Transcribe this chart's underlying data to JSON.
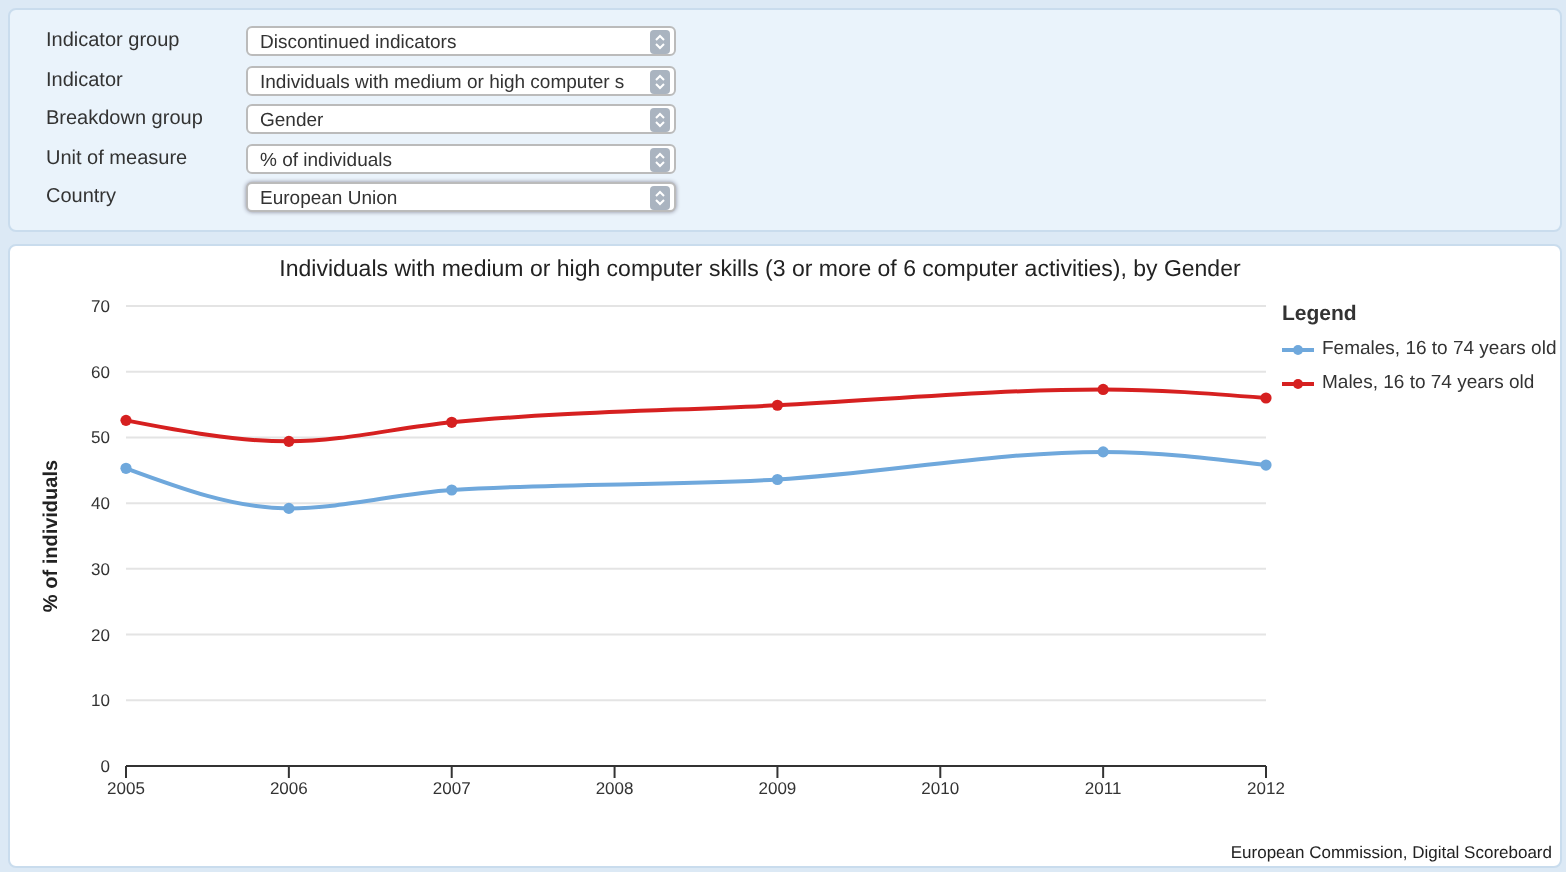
{
  "chart_data": {
    "type": "line",
    "title": "Individuals with medium or high computer skills (3 or more of 6 computer activities), by Gender",
    "ylabel": "% of individuals",
    "legend_title": "Legend",
    "categories": [
      "2005",
      "2006",
      "2007",
      "2008",
      "2009",
      "2010",
      "2011",
      "2012"
    ],
    "series": [
      {
        "name": "Females, 16 to 74 years old",
        "color": "#6fa8dc",
        "values": [
          45.3,
          39.2,
          42.0,
          null,
          43.6,
          null,
          47.8,
          45.8
        ]
      },
      {
        "name": "Males, 16 to 74 years old",
        "color": "#d62020",
        "values": [
          52.6,
          49.4,
          52.3,
          null,
          54.9,
          null,
          57.3,
          56.0
        ]
      }
    ],
    "ylim": [
      0,
      70
    ],
    "yticks": [
      0,
      10,
      20,
      30,
      40,
      50,
      60,
      70
    ],
    "grid": "y",
    "legend": "top right",
    "marker": "circle",
    "annotations": [
      "Indicator group",
      "Discontinued indicators",
      "Indicator",
      "Individuals with medium or high computer s",
      "Breakdown group",
      "Gender",
      "Unit of measure",
      "% of individuals",
      "Country",
      "European Union",
      "European Commission, Digital Scoreboard"
    ]
  }
}
